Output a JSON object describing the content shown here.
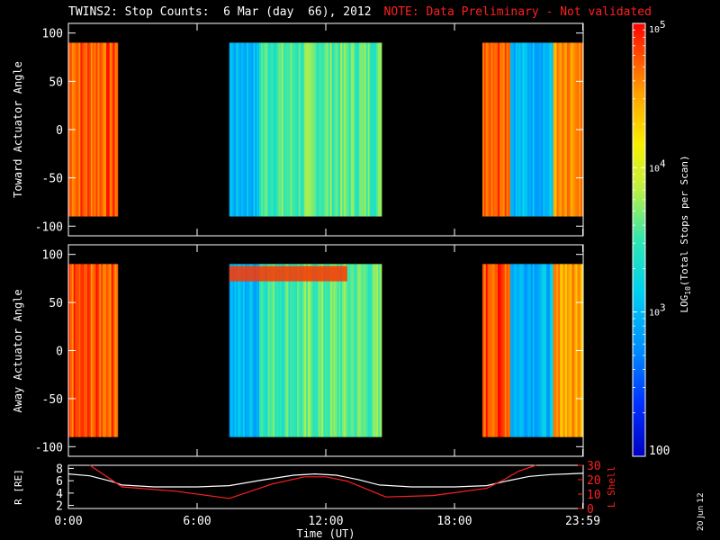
{
  "title": "TWINS2: Stop Counts:  6 Mar (day  66), 2012",
  "note": "NOTE: Data Preliminary - Not validated",
  "date_stamp": "20 Jun 12",
  "colors": {
    "note": "#ff2020",
    "r_line": "#ffffff",
    "lshell_line": "#ff2020",
    "background": "#000000"
  },
  "chart_data": [
    {
      "type": "heatmap",
      "ylabel": "Toward Actuator Angle",
      "y_ticks": [
        "100",
        "50",
        "0",
        "-50",
        "-100"
      ],
      "y_range": [
        -110,
        110
      ],
      "data_y_range": [
        -90,
        90
      ],
      "data_blocks_hours": [
        [
          0.0,
          2.3
        ],
        [
          7.5,
          14.6
        ],
        [
          19.3,
          23.98
        ]
      ],
      "gaps_hours": [
        [
          2.3,
          7.5
        ],
        [
          14.6,
          19.3
        ]
      ],
      "log_level_profile": [
        {
          "t0": 0.0,
          "t1": 2.3,
          "level": 4.75
        },
        {
          "t0": 7.5,
          "t1": 8.9,
          "level": 3.0
        },
        {
          "t0": 8.9,
          "t1": 11.0,
          "level": 3.55
        },
        {
          "t0": 11.0,
          "t1": 14.6,
          "level": 3.6
        },
        {
          "t0": 19.3,
          "t1": 20.6,
          "level": 4.8
        },
        {
          "t0": 20.6,
          "t1": 22.6,
          "level": 3.0
        },
        {
          "t0": 22.6,
          "t1": 23.98,
          "level": 4.5
        }
      ]
    },
    {
      "type": "heatmap",
      "ylabel": "Away Actuator Angle",
      "y_ticks": [
        "100",
        "50",
        "0",
        "-50",
        "-100"
      ],
      "y_range": [
        -110,
        110
      ],
      "data_y_range": [
        -90,
        90
      ],
      "data_blocks_hours": [
        [
          0.0,
          2.3
        ],
        [
          7.5,
          14.6
        ],
        [
          19.3,
          23.98
        ]
      ],
      "gaps_hours": [
        [
          2.3,
          7.5
        ],
        [
          14.6,
          19.3
        ]
      ],
      "high_count_band": {
        "t0": 7.5,
        "t1": 13.0,
        "y0": 72,
        "y1": 88,
        "level": 4.85
      },
      "log_level_profile": [
        {
          "t0": 0.0,
          "t1": 2.3,
          "level": 4.75
        },
        {
          "t0": 7.5,
          "t1": 8.9,
          "level": 3.0
        },
        {
          "t0": 8.9,
          "t1": 11.0,
          "level": 3.55
        },
        {
          "t0": 11.0,
          "t1": 14.6,
          "level": 3.6
        },
        {
          "t0": 19.3,
          "t1": 20.6,
          "level": 4.8
        },
        {
          "t0": 20.6,
          "t1": 22.6,
          "level": 3.0
        },
        {
          "t0": 22.6,
          "t1": 23.98,
          "level": 4.5
        }
      ]
    },
    {
      "type": "line",
      "ylabel_left": "R [RE]",
      "ylabel_right": "L Shell",
      "y_left_ticks": [
        "8",
        "6",
        "4",
        "2"
      ],
      "y_left_range": [
        1.5,
        8.5
      ],
      "y_right_ticks": [
        "30",
        "20",
        "10",
        "0"
      ],
      "y_right_range": [
        0,
        30
      ],
      "series": [
        {
          "name": "R [RE]",
          "axis": "left",
          "x_hours": [
            0,
            1,
            2,
            2.5,
            4,
            6,
            7.5,
            9,
            10.5,
            11.5,
            12.5,
            13.5,
            14.5,
            16,
            18,
            19.5,
            20.5,
            21.5,
            22.5,
            23.98
          ],
          "values": [
            7.1,
            6.8,
            5.9,
            5.3,
            5.0,
            5.0,
            5.2,
            6.1,
            6.9,
            7.1,
            6.9,
            6.2,
            5.3,
            5.0,
            5.0,
            5.2,
            6.0,
            6.7,
            7.0,
            7.2
          ]
        },
        {
          "name": "L Shell",
          "axis": "right",
          "x_hours": [
            1.0,
            1.8,
            2.5,
            5.0,
            7.5,
            9.5,
            11.0,
            12.0,
            13.0,
            14.8,
            17.0,
            19.5,
            20.3,
            21.0,
            21.8
          ],
          "values": [
            30,
            22,
            15,
            12,
            7,
            17,
            22,
            22,
            19,
            8,
            9,
            14,
            20,
            26,
            30
          ]
        }
      ]
    },
    {
      "type": "colorbar",
      "label": "LOG10(Total Stops per Scan)",
      "label_main": "LOG",
      "label_sub": "10",
      "label_rest": "(Total Stops per Scan)",
      "range_log": [
        2,
        5
      ],
      "tick_labels": [
        "10",
        "10",
        "10",
        "100"
      ],
      "tick_exponents": [
        "5",
        "4",
        "3",
        ""
      ]
    }
  ],
  "x_axis": {
    "ticks": [
      "0:00",
      "6:00",
      "12:00",
      "18:00",
      "23:59"
    ],
    "tick_hours": [
      0,
      6,
      12,
      18,
      23.98
    ],
    "label": "Time (UT)"
  }
}
